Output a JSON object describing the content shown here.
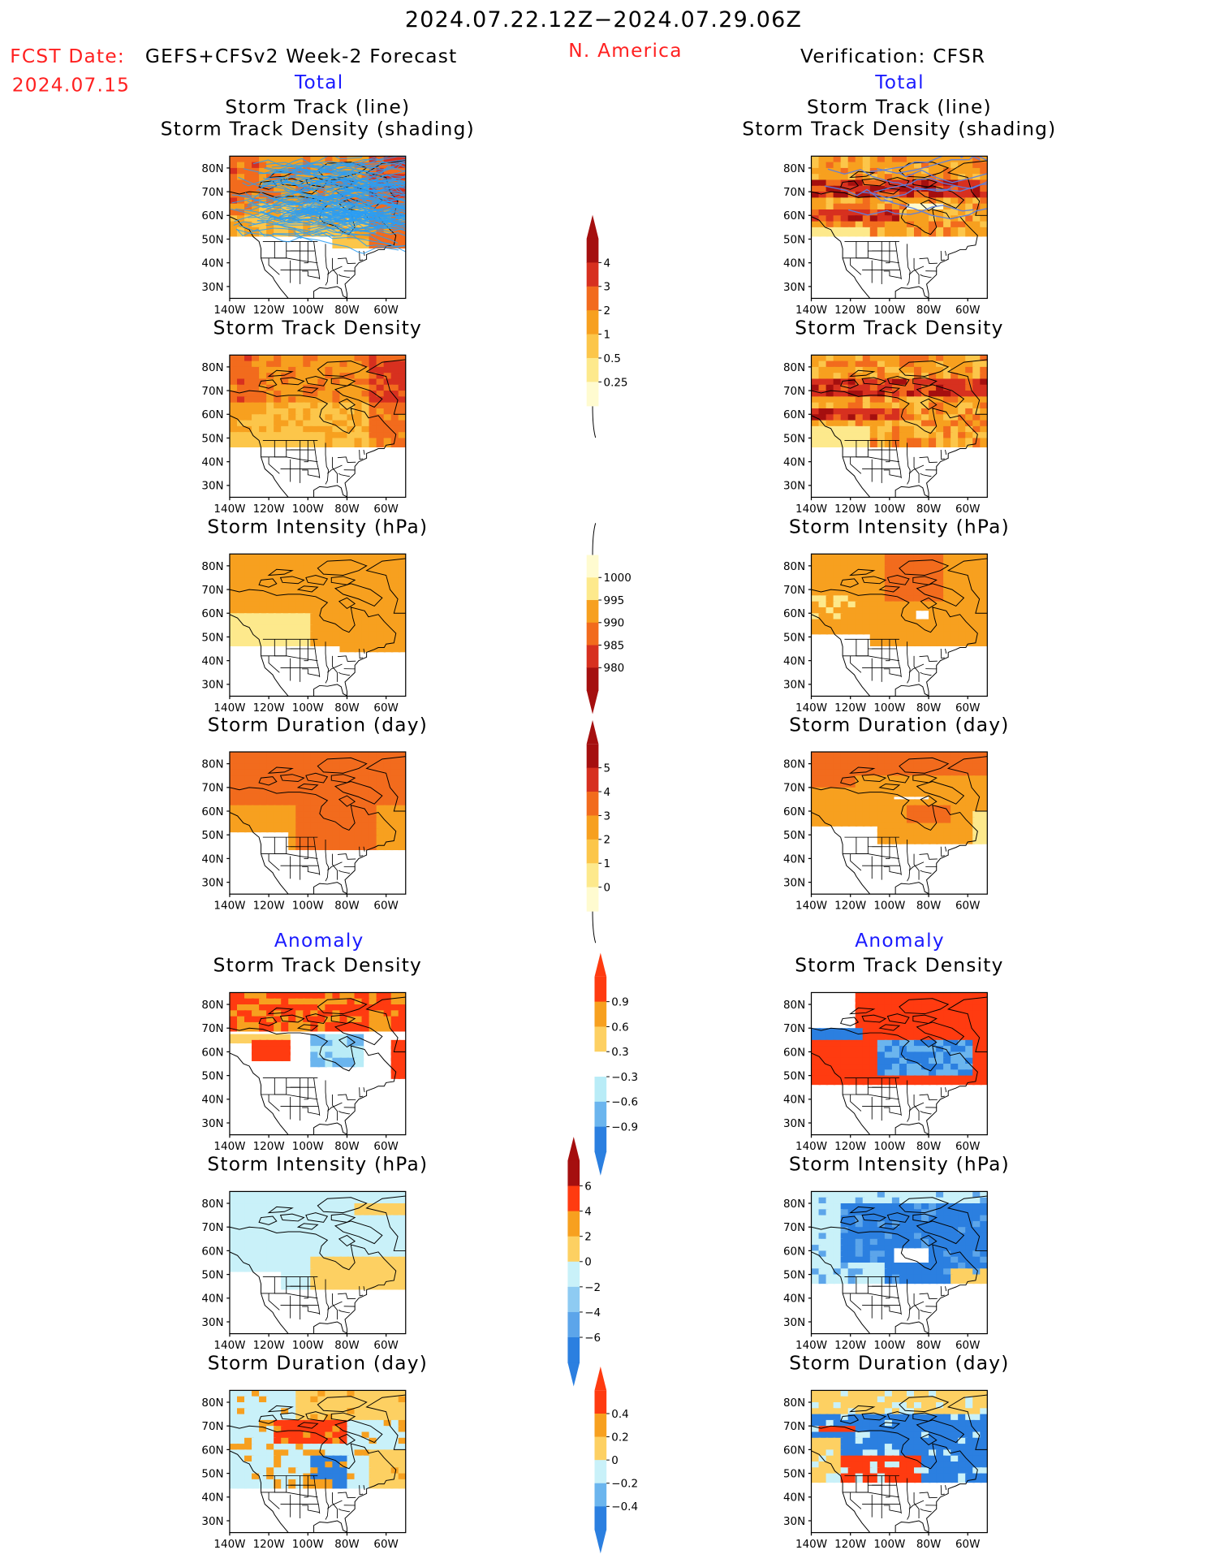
{
  "header": {
    "date_range": "2024.07.22.12Z−2024.07.29.06Z",
    "region": "N. America",
    "fcst_label": "FCST Date:",
    "fcst_model": "GEFS+CFSv2 Week-2 Forecast",
    "fcst_date": "2024.07.15",
    "verification": "Verification: CFSR"
  },
  "sections": {
    "total": "Total",
    "anomaly": "Anomaly"
  },
  "axes": {
    "lon_labels": [
      "140W",
      "120W",
      "100W",
      "80W",
      "60W"
    ],
    "lat_labels": [
      "80N",
      "70N",
      "60N",
      "50N",
      "40N",
      "30N"
    ]
  },
  "panels": {
    "left": [
      {
        "title": "Storm Track (line)",
        "title2": "Storm Track Density (shading)",
        "field": "track_lines_density"
      },
      {
        "title": "Storm Track Density",
        "field": "track_density"
      },
      {
        "title": "Storm Intensity (hPa)",
        "field": "intensity"
      },
      {
        "title": "Storm Duration (day)",
        "field": "duration"
      },
      {
        "title": "Storm Track Density",
        "field": "track_density_anom"
      },
      {
        "title": "Storm Intensity (hPa)",
        "field": "intensity_anom"
      },
      {
        "title": "Storm Duration (day)",
        "field": "duration_anom"
      }
    ],
    "right": [
      {
        "title": "Storm Track (line)",
        "title2": "Storm Track Density (shading)",
        "field": "track_lines_density"
      },
      {
        "title": "Storm Track Density",
        "field": "track_density"
      },
      {
        "title": "Storm Intensity (hPa)",
        "field": "intensity"
      },
      {
        "title": "Storm Duration (day)",
        "field": "duration"
      },
      {
        "title": "Storm Track Density",
        "field": "track_density_anom"
      },
      {
        "title": "Storm Intensity (hPa)",
        "field": "intensity_anom"
      },
      {
        "title": "Storm Duration (day)",
        "field": "duration_anom"
      }
    ]
  },
  "colorbars": [
    {
      "name": "track-density",
      "labels": [
        "4",
        "3",
        "2",
        "1",
        "0.5",
        "0.25"
      ],
      "colors": [
        "#a50f0f",
        "#d7301f",
        "#f26b1d",
        "#f7a01f",
        "#fcc64a",
        "#fde98c",
        "#fffbd0"
      ]
    },
    {
      "name": "intensity",
      "labels": [
        "1000",
        "995",
        "990",
        "985",
        "980"
      ],
      "colors": [
        "#fffbd0",
        "#fde98c",
        "#f7a01f",
        "#f26b1d",
        "#d7301f",
        "#a50f0f"
      ]
    },
    {
      "name": "duration",
      "labels": [
        "5",
        "4",
        "3",
        "2",
        "1",
        "0"
      ],
      "colors": [
        "#a50f0f",
        "#d7301f",
        "#f26b1d",
        "#f7a01f",
        "#fcc64a",
        "#fde98c",
        "#fffbd0"
      ]
    },
    {
      "name": "track-density-anom",
      "labels": [
        "0.9",
        "0.6",
        "0.3",
        "−0.3",
        "−0.6",
        "−0.9"
      ],
      "colors": [
        "#ff3b10",
        "#f7a01f",
        "#fdd062",
        "#ffffff",
        "#b9ecf7",
        "#6bb5ee",
        "#2b7fe0"
      ]
    },
    {
      "name": "intensity-anom",
      "labels": [
        "6",
        "4",
        "2",
        "0",
        "−2",
        "−4",
        "−6"
      ],
      "colors": [
        "#a50f0f",
        "#ff3b10",
        "#f7a01f",
        "#fdd062",
        "#c9f1f9",
        "#8ecbf2",
        "#5ca5ea",
        "#2b7fe0"
      ]
    },
    {
      "name": "duration-anom",
      "labels": [
        "0.4",
        "0.2",
        "0",
        "−0.2",
        "−0.4"
      ],
      "colors": [
        "#ff3b10",
        "#f7a01f",
        "#fdd062",
        "#c9f1f9",
        "#6bb5ee",
        "#2b7fe0"
      ]
    }
  ],
  "colors": {
    "red_text": "#ff2020",
    "blue_text": "#1a1aff",
    "track_forecast": "#2a9df4",
    "track_verification": "#5c7ee0"
  }
}
